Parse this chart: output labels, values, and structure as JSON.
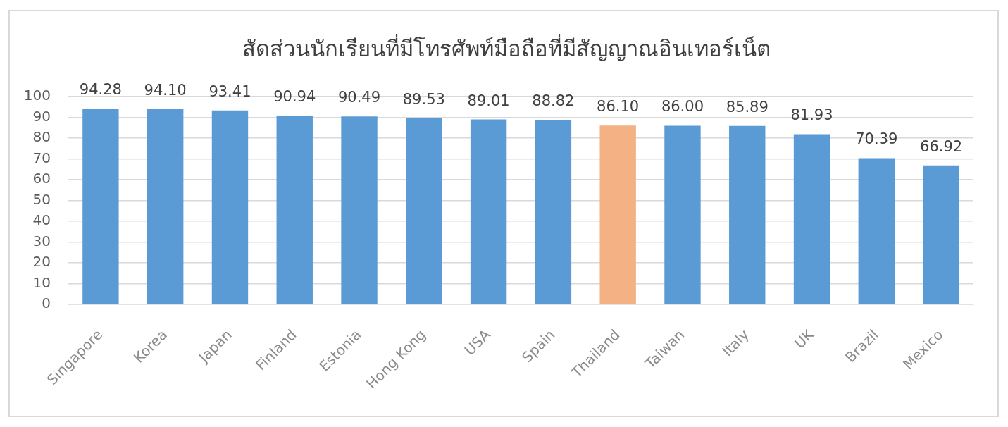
{
  "chart_data": {
    "type": "bar",
    "title": "สัดส่วนนักเรียนที่มีโทรศัพท์มือถือที่มีสัญญาณอินเทอร์เน็ต",
    "categories": [
      "Singapore",
      "Korea",
      "Japan",
      "Finland",
      "Estonia",
      "Hong Kong",
      "USA",
      "Spain",
      "Thailand",
      "Taiwan",
      "Italy",
      "UK",
      "Brazil",
      "Mexico"
    ],
    "values": [
      94.28,
      94.1,
      93.41,
      90.94,
      90.49,
      89.53,
      89.01,
      88.82,
      86.1,
      86.0,
      85.89,
      81.93,
      70.39,
      66.92
    ],
    "value_labels": [
      "94.28",
      "94.10",
      "93.41",
      "90.94",
      "90.49",
      "89.53",
      "89.01",
      "88.82",
      "86.10",
      "86.00",
      "85.89",
      "81.93",
      "70.39",
      "66.92"
    ],
    "colors": [
      "#5b9bd5",
      "#5b9bd5",
      "#5b9bd5",
      "#5b9bd5",
      "#5b9bd5",
      "#5b9bd5",
      "#5b9bd5",
      "#5b9bd5",
      "#f4b183",
      "#5b9bd5",
      "#5b9bd5",
      "#5b9bd5",
      "#5b9bd5",
      "#5b9bd5"
    ],
    "ylim": [
      0,
      100
    ],
    "yticks": [
      0,
      10,
      20,
      30,
      40,
      50,
      60,
      70,
      80,
      90,
      100
    ],
    "grid": "y"
  }
}
